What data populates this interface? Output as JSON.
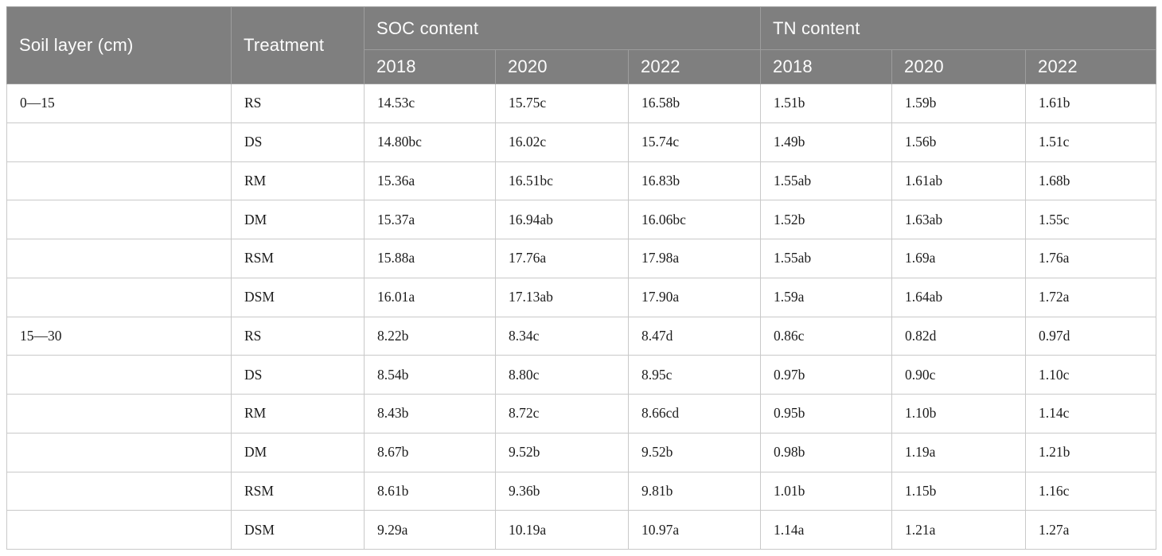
{
  "table": {
    "header": {
      "soil_layer": "Soil layer (cm)",
      "treatment": "Treatment",
      "soc_group": "SOC content",
      "tn_group": "TN content",
      "years": [
        "2018",
        "2020",
        "2022"
      ]
    },
    "rows": [
      {
        "soil_layer": "0—15",
        "treatment": "RS",
        "soc": [
          "14.53c",
          "15.75c",
          "16.58b"
        ],
        "tn": [
          "1.51b",
          "1.59b",
          "1.61b"
        ]
      },
      {
        "soil_layer": "",
        "treatment": "DS",
        "soc": [
          "14.80bc",
          "16.02c",
          "15.74c"
        ],
        "tn": [
          "1.49b",
          "1.56b",
          "1.51c"
        ]
      },
      {
        "soil_layer": "",
        "treatment": "RM",
        "soc": [
          "15.36a",
          "16.51bc",
          "16.83b"
        ],
        "tn": [
          "1.55ab",
          "1.61ab",
          "1.68b"
        ]
      },
      {
        "soil_layer": "",
        "treatment": "DM",
        "soc": [
          "15.37a",
          "16.94ab",
          "16.06bc"
        ],
        "tn": [
          "1.52b",
          "1.63ab",
          "1.55c"
        ]
      },
      {
        "soil_layer": "",
        "treatment": "RSM",
        "soc": [
          "15.88a",
          "17.76a",
          "17.98a"
        ],
        "tn": [
          "1.55ab",
          "1.69a",
          "1.76a"
        ]
      },
      {
        "soil_layer": "",
        "treatment": "DSM",
        "soc": [
          "16.01a",
          "17.13ab",
          "17.90a"
        ],
        "tn": [
          "1.59a",
          "1.64ab",
          "1.72a"
        ]
      },
      {
        "soil_layer": "15—30",
        "treatment": "RS",
        "soc": [
          "8.22b",
          "8.34c",
          "8.47d"
        ],
        "tn": [
          "0.86c",
          "0.82d",
          "0.97d"
        ]
      },
      {
        "soil_layer": "",
        "treatment": "DS",
        "soc": [
          "8.54b",
          "8.80c",
          "8.95c"
        ],
        "tn": [
          "0.97b",
          "0.90c",
          "1.10c"
        ]
      },
      {
        "soil_layer": "",
        "treatment": "RM",
        "soc": [
          "8.43b",
          "8.72c",
          "8.66cd"
        ],
        "tn": [
          "0.95b",
          "1.10b",
          "1.14c"
        ]
      },
      {
        "soil_layer": "",
        "treatment": "DM",
        "soc": [
          "8.67b",
          "9.52b",
          "9.52b"
        ],
        "tn": [
          "0.98b",
          "1.19a",
          "1.21b"
        ]
      },
      {
        "soil_layer": "",
        "treatment": "RSM",
        "soc": [
          "8.61b",
          "9.36b",
          "9.81b"
        ],
        "tn": [
          "1.01b",
          "1.15b",
          "1.16c"
        ]
      },
      {
        "soil_layer": "",
        "treatment": "DSM",
        "soc": [
          "9.29a",
          "10.19a",
          "10.97a"
        ],
        "tn": [
          "1.14a",
          "1.21a",
          "1.27a"
        ]
      }
    ]
  },
  "colors": {
    "header_bg": "#7f7f7f",
    "header_text": "#fdfdfd",
    "header_divider": "#9d9d9d",
    "body_text": "#1c1c1c",
    "body_border": "#c9c9c9",
    "page_bg": "#ffffff"
  }
}
